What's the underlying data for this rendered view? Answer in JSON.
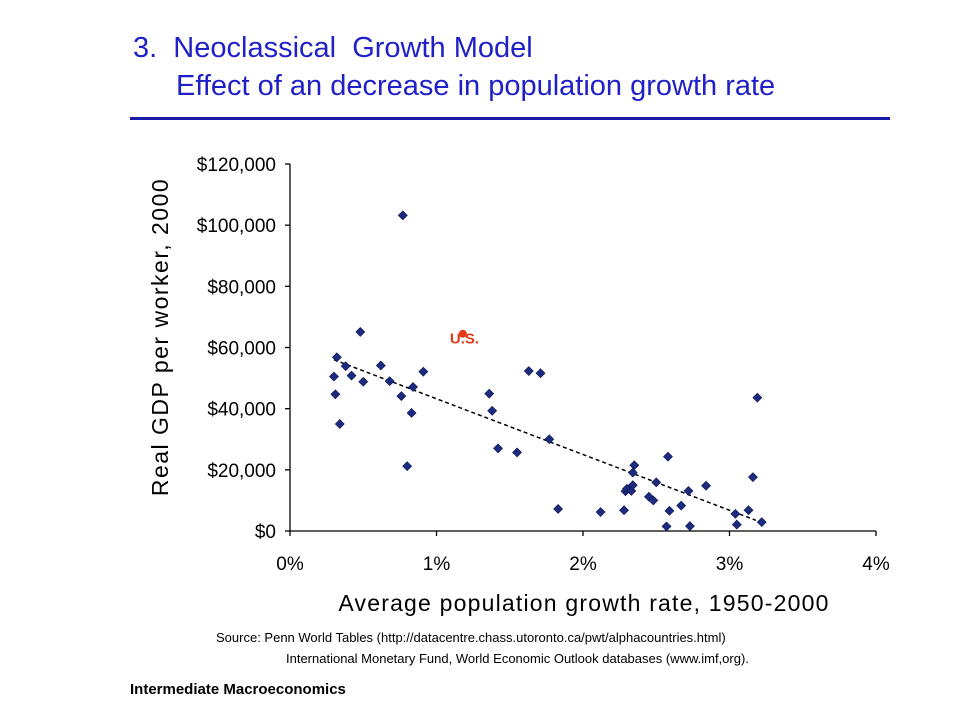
{
  "slide": {
    "title_line1": "3.  Neoclassical  Growth Model",
    "title_line2": "Effect of an decrease in population growth rate",
    "source_line1": "Source: Penn World Tables (http://datacentre.chass.utoronto.ca/pwt/alphacountries.html)",
    "source_line2": "International Monetary Fund, World Economic Outlook databases (www.imf,org).",
    "footer": "Intermediate Macroeconomics"
  },
  "colors": {
    "title": "#2020c8",
    "rule": "#1a1aa8",
    "marker": "#1c2a80",
    "highlight": "#e03a1a",
    "trendline": "#000000"
  },
  "chart_data": {
    "type": "scatter",
    "xlabel": "Average population growth rate, 1950-2000",
    "ylabel": "Real GDP per worker, 2000",
    "xlim": [
      0,
      4
    ],
    "ylim": [
      0,
      120000
    ],
    "x_ticks": [
      0,
      1,
      2,
      3,
      4
    ],
    "x_tick_labels": [
      "0%",
      "1%",
      "2%",
      "3%",
      "4%"
    ],
    "y_ticks": [
      0,
      20000,
      40000,
      60000,
      80000,
      100000,
      120000
    ],
    "y_tick_labels": [
      "$0",
      "$20,000",
      "$40,000",
      "$60,000",
      "$80,000",
      "$100,000",
      "$120,000"
    ],
    "grid": false,
    "series": [
      {
        "points": [
          [
            0.3,
            50500
          ],
          [
            0.31,
            44700
          ],
          [
            0.32,
            56800
          ],
          [
            0.34,
            35000
          ],
          [
            0.38,
            53900
          ],
          [
            0.42,
            50800
          ],
          [
            0.48,
            65100
          ],
          [
            0.5,
            48800
          ],
          [
            0.62,
            54100
          ],
          [
            0.68,
            49000
          ],
          [
            0.76,
            44100
          ],
          [
            0.77,
            103200
          ],
          [
            0.8,
            21200
          ],
          [
            0.83,
            38600
          ],
          [
            0.84,
            47100
          ],
          [
            0.91,
            52100
          ],
          [
            1.36,
            44900
          ],
          [
            1.38,
            39300
          ],
          [
            1.42,
            27000
          ],
          [
            1.55,
            25700
          ],
          [
            1.63,
            52300
          ],
          [
            1.71,
            51600
          ],
          [
            1.77,
            30000
          ],
          [
            1.83,
            7200
          ],
          [
            2.12,
            6200
          ],
          [
            2.28,
            6800
          ],
          [
            2.29,
            13000
          ],
          [
            2.3,
            13800
          ],
          [
            2.33,
            13100
          ],
          [
            2.34,
            15000
          ],
          [
            2.34,
            19100
          ],
          [
            2.35,
            21500
          ],
          [
            2.45,
            11200
          ],
          [
            2.48,
            10000
          ],
          [
            2.5,
            15900
          ],
          [
            2.57,
            1500
          ],
          [
            2.58,
            24300
          ],
          [
            2.59,
            6600
          ],
          [
            2.67,
            8300
          ],
          [
            2.72,
            13100
          ],
          [
            2.73,
            1600
          ],
          [
            2.84,
            14800
          ],
          [
            3.04,
            5600
          ],
          [
            3.05,
            2100
          ],
          [
            3.13,
            6800
          ],
          [
            3.16,
            17600
          ],
          [
            3.19,
            43600
          ],
          [
            3.22,
            2900
          ]
        ]
      },
      {
        "highlight": true,
        "label": "U.S.",
        "points": [
          [
            1.18,
            64500
          ]
        ]
      }
    ],
    "trendline": {
      "style": "dashed",
      "points": [
        [
          0.3,
          56000
        ],
        [
          3.18,
          3500
        ]
      ]
    }
  }
}
